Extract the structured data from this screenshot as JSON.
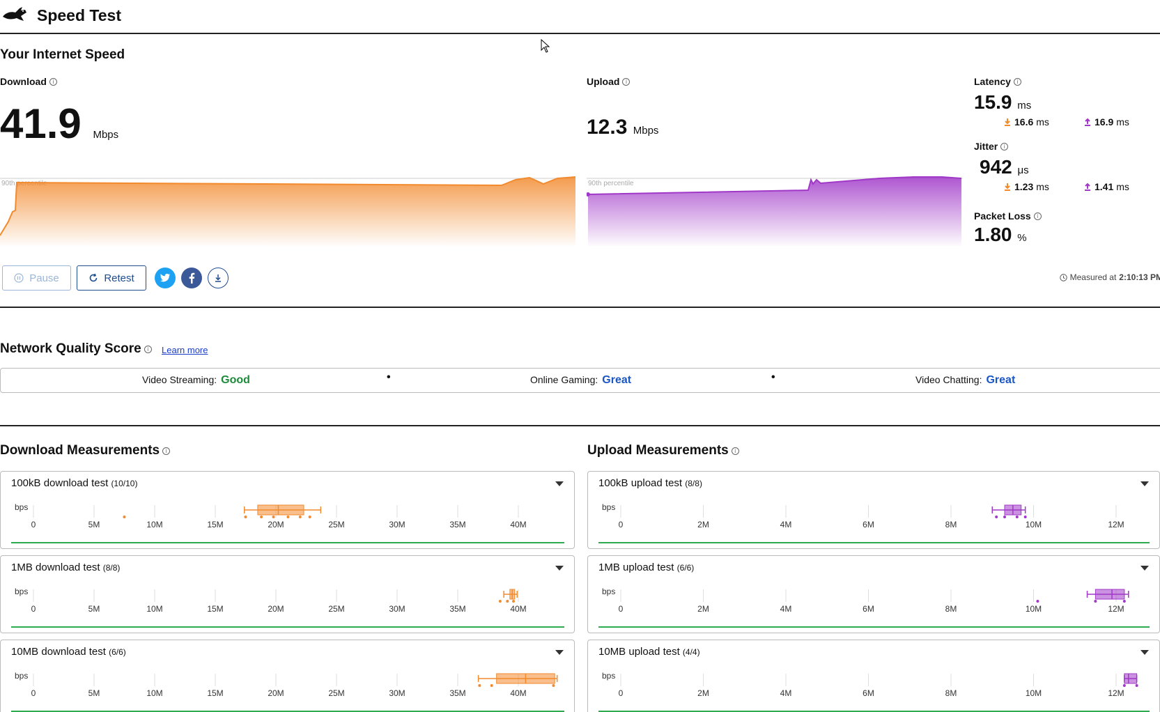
{
  "header": {
    "title": "Speed Test"
  },
  "summary": {
    "section_title": "Your Internet Speed",
    "download": {
      "label": "Download",
      "value": "41.9",
      "unit": "Mbps",
      "percentile_label": "90th percentile"
    },
    "upload": {
      "label": "Upload",
      "value": "12.3",
      "unit": "Mbps",
      "percentile_label": "90th percentile"
    },
    "latency": {
      "label": "Latency",
      "value": "15.9",
      "unit": "ms",
      "down": "16.6",
      "down_unit": "ms",
      "up": "16.9",
      "up_unit": "ms"
    },
    "jitter": {
      "label": "Jitter",
      "value": "942",
      "unit": "μs",
      "down": "1.23",
      "down_unit": "ms",
      "up": "1.41",
      "up_unit": "ms"
    },
    "packet_loss": {
      "label": "Packet Loss",
      "value": "1.80",
      "unit": "%"
    }
  },
  "actions": {
    "pause_label": "Pause",
    "retest_label": "Retest",
    "measured_label": "Measured at",
    "measured_time": "2:10:13 PM"
  },
  "network_quality": {
    "title": "Network Quality Score",
    "learn_more": "Learn more",
    "items": [
      {
        "label": "Video Streaming:",
        "value": "Good",
        "color": "#1e8a3a"
      },
      {
        "label": "Online Gaming:",
        "value": "Great",
        "color": "#1a56c4"
      },
      {
        "label": "Video Chatting:",
        "value": "Great",
        "color": "#1a56c4"
      }
    ]
  },
  "colors": {
    "download": "#f28a2e",
    "upload": "#a038c8",
    "twitter": "#1da1f2",
    "facebook": "#3b5998",
    "accent": "#1f4c8f"
  },
  "download_measurements": {
    "title": "Download Measurements",
    "axis_unit": "bps",
    "ticks": [
      "0",
      "5M",
      "10M",
      "15M",
      "20M",
      "25M",
      "30M",
      "35M",
      "40M"
    ],
    "tests": [
      {
        "name": "100kB download test",
        "count": "(10/10)",
        "box": [
          18.5,
          20.2,
          22.3
        ],
        "whisker": [
          17.4,
          23.7
        ],
        "outliers": [
          7.5,
          17.5,
          18.8,
          19.8,
          21.0,
          22.0,
          22.8
        ]
      },
      {
        "name": "1MB download test",
        "count": "(8/8)",
        "box": [
          39.3,
          39.5,
          39.7
        ],
        "whisker": [
          38.8,
          39.9
        ],
        "outliers": [
          38.5,
          39.1,
          39.6
        ]
      },
      {
        "name": "10MB download test",
        "count": "(6/6)",
        "box": [
          38.2,
          40.6,
          43.0
        ],
        "whisker": [
          36.7,
          43.2
        ],
        "outliers": [
          36.8,
          37.8,
          42.9
        ]
      }
    ]
  },
  "upload_measurements": {
    "title": "Upload Measurements",
    "axis_unit": "bps",
    "ticks": [
      "0",
      "2M",
      "4M",
      "6M",
      "8M",
      "10M",
      "12M"
    ],
    "tests": [
      {
        "name": "100kB upload test",
        "count": "(8/8)",
        "box": [
          9.3,
          9.5,
          9.7
        ],
        "whisker": [
          9.0,
          9.8
        ],
        "outliers": [
          9.1,
          9.3,
          9.6,
          9.8
        ]
      },
      {
        "name": "1MB upload test",
        "count": "(6/6)",
        "box": [
          11.5,
          11.9,
          12.2
        ],
        "whisker": [
          11.3,
          12.3
        ],
        "outliers": [
          10.1,
          11.5,
          12.2
        ]
      },
      {
        "name": "10MB upload test",
        "count": "(4/4)",
        "box": [
          12.2,
          12.3,
          12.5
        ],
        "whisker": [
          12.2,
          12.5
        ],
        "outliers": [
          12.2,
          12.5
        ]
      }
    ]
  }
}
